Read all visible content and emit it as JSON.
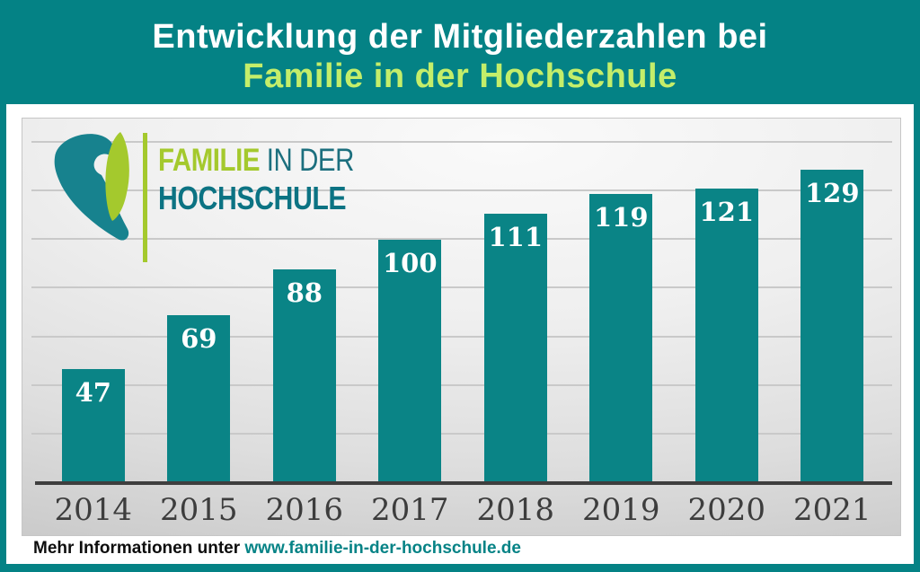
{
  "header": {
    "title_line1": "Entwicklung der Mitgliederzahlen bei",
    "title_line2": "Familie in der Hochschule"
  },
  "logo": {
    "name_part1": "FAMILIE",
    "name_part2": " IN DER",
    "name_line2": "HOCHSCHULE",
    "mark": "teal-swoosh-and-green-leaf-icon"
  },
  "footer": {
    "label": "Mehr Informationen unter ",
    "link": "www.familie-in-der-hochschule.de"
  },
  "colors": {
    "background_teal": "#048285",
    "bar_teal": "#0a8486",
    "title_green": "#c4ee6a",
    "logo_green": "#a4c92d",
    "logo_teal": "#0c7383",
    "axis": "#3e3e3e",
    "gridline": "#c9c9c9",
    "year_label": "#3d3d3d",
    "value_label": "#ffffff",
    "link_teal": "#068386"
  },
  "chart_data": {
    "type": "bar",
    "categories": [
      "2014",
      "2015",
      "2016",
      "2017",
      "2018",
      "2019",
      "2020",
      "2021"
    ],
    "values": [
      47,
      69,
      88,
      100,
      111,
      119,
      121,
      129
    ],
    "series_name": "Mitgliederzahlen",
    "title": "Entwicklung der Mitgliederzahlen bei Familie in der Hochschule",
    "xlabel": "",
    "ylabel": "",
    "ylim": [
      0,
      150
    ],
    "gridline_values": [
      20,
      40,
      60,
      80,
      100,
      120,
      140
    ],
    "grid": "horizontal",
    "legend": "none",
    "value_label_position": "inside-top",
    "bar_color": "#0a8486"
  }
}
